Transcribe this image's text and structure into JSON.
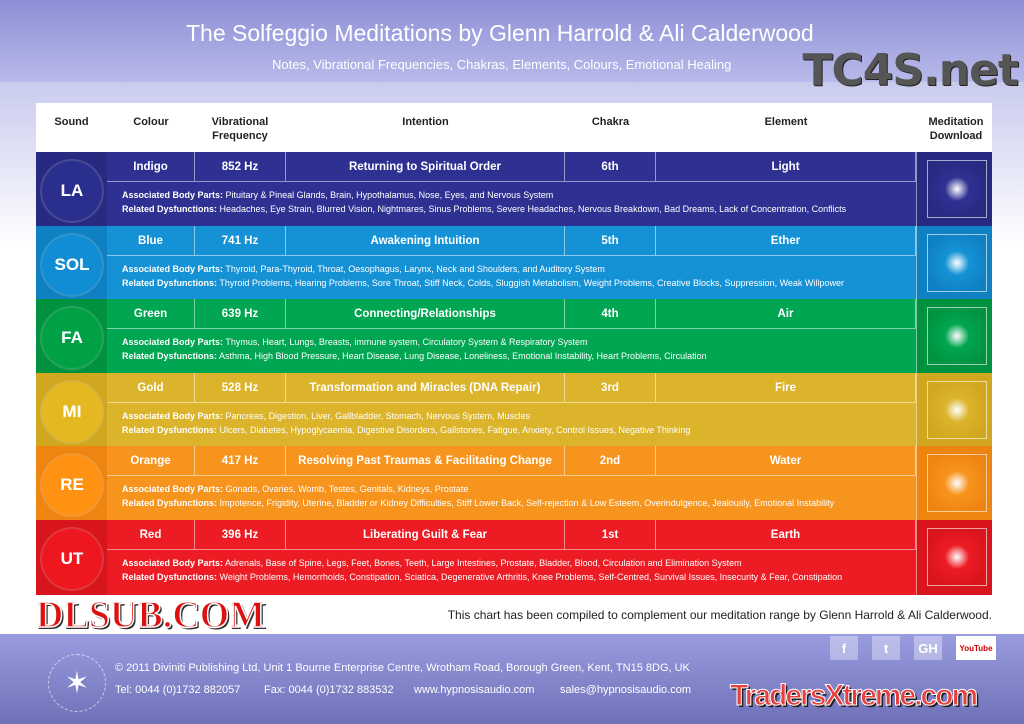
{
  "header": {
    "title": "The Solfeggio Meditations by Glenn Harrold & Ali Calderwood",
    "subtitle": "Notes, Vibrational Frequencies, Chakras, Elements, Colours, Emotional Healing"
  },
  "columns": [
    "Sound",
    "Colour",
    "Vibrational Frequency",
    "Intention",
    "Chakra",
    "Element",
    "Meditation Download"
  ],
  "labels": {
    "body": "Associated Body Parts:",
    "dys": "Related Dysfunctions:"
  },
  "rows": [
    {
      "sound": "LA",
      "colour": "Indigo",
      "freq": "852 Hz",
      "intention": "Returning to Spiritual Order",
      "chakra": "6th",
      "element": "Light",
      "body": "Pituitary & Pineal Glands, Brain, Hypothalamus, Nose, Eyes, and Nervous System",
      "dys": "Headaches, Eye Strain, Blurred Vision, Nightmares, Sinus Problems, Severe Headaches, Nervous Breakdown, Bad Dreams, Lack of Concentration, Conflicts",
      "color": "#2e3192",
      "dark": "#262a80"
    },
    {
      "sound": "SOL",
      "colour": "Blue",
      "freq": "741 Hz",
      "intention": "Awakening Intuition",
      "chakra": "5th",
      "element": "Ether",
      "body": "Thyroid, Para-Thyroid, Throat, Oesophagus, Larynx, Neck and Shoulders, and Auditory System",
      "dys": "Thyroid Problems, Hearing Problems, Sore Throat, Stiff Neck, Colds, Sluggish Metabolism, Weight Problems, Creative Blocks, Suppression, Weak Willpower",
      "color": "#1592d6",
      "dark": "#0f80c2"
    },
    {
      "sound": "FA",
      "colour": "Green",
      "freq": "639 Hz",
      "intention": "Connecting/Relationships",
      "chakra": "4th",
      "element": "Air",
      "body": "Thymus, Heart, Lungs, Breasts, immune system, Circulatory System & Respiratory System",
      "dys": "Asthma, High Blood Pressure, Heart Disease, Lung Disease, Loneliness, Emotional Instability, Heart Problems, Circulation",
      "color": "#00a651",
      "dark": "#00923f"
    },
    {
      "sound": "MI",
      "colour": "Gold",
      "freq": "528 Hz",
      "intention": "Transformation and Miracles (DNA Repair)",
      "chakra": "3rd",
      "element": "Fire",
      "body": "Pancreas, Digestion, Liver, Gallbladder, Stomach, Nervous System, Muscles",
      "dys": "Ulcers, Diabetes, Hypoglycaemia, Digestive Disorders, Gallstones, Fatigue, Anxiety, Control Issues, Negative Thinking",
      "color": "#dbb42c",
      "dark": "#d0a71f"
    },
    {
      "sound": "RE",
      "colour": "Orange",
      "freq": "417 Hz",
      "intention": "Resolving Past Traumas & Facilitating Change",
      "chakra": "2nd",
      "element": "Water",
      "body": "Gonads, Ovaries, Womb, Testes, Genitals, Kidneys, Prostate",
      "dys": "Impotence, Frigidity, Uterine, Bladder or Kidney Difficulties, Stiff Lower Back, Self-rejection & Low Esteem, Overindulgence,  Jealously, Emotional Instability",
      "color": "#f7941d",
      "dark": "#ee8510"
    },
    {
      "sound": "UT",
      "colour": "Red",
      "freq": "396 Hz",
      "intention": "Liberating Guilt & Fear",
      "chakra": "1st",
      "element": "Earth",
      "body": "Adrenals, Base of Spine, Legs, Feet, Bones, Teeth, Large Intestines, Prostate, Bladder, Blood, Circulation and Elimination System",
      "dys": "Weight Problems, Hemorrhoids, Constipation, Sciatica, Degenerative Arthritis, Knee Problems, Self-Centred, Survival Issues, Insecurity & Fear, Constipation",
      "color": "#ed1c24",
      "dark": "#d8141c"
    }
  ],
  "note": "This chart has been compiled to complement our meditation range by Glenn Harrold & Ali Calderwood.",
  "footer": {
    "address": "© 2011 Diviniti Publishing Ltd, Unit 1 Bourne Enterprise Centre, Wrotham Road, Borough Green, Kent, TN15 8DG, UK",
    "tel": "Tel:  0044 (0)1732 882057",
    "fax": "Fax: 0044 (0)1732 883532",
    "web": "www.hypnosisaudio.com",
    "email": "sales@hypnosisaudio.com",
    "logo": "DIVINITI PUBLISHING",
    "social": [
      "f",
      "t",
      "GH",
      "YouTube"
    ]
  },
  "watermarks": [
    "TC4S.net",
    "DLSUB.COM",
    "TradersXtreme.com"
  ]
}
